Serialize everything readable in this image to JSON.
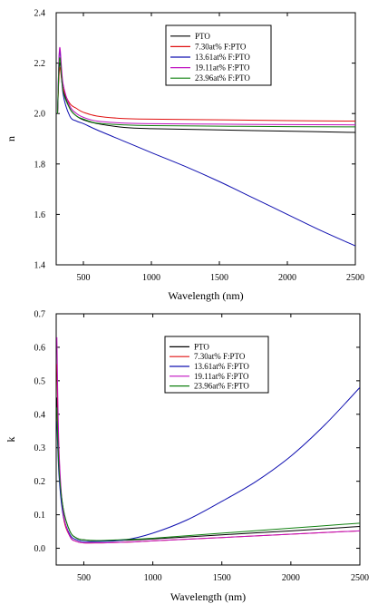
{
  "chart_data": [
    {
      "type": "line",
      "xlabel": "Wavelength (nm)",
      "ylabel": "n",
      "xlim": [
        300,
        2500
      ],
      "ylim": [
        1.4,
        2.4
      ],
      "xticks": [
        "500",
        "1000",
        "1500",
        "2000",
        "2500"
      ],
      "yticks": [
        "1.4",
        "1.6",
        "1.8",
        "2.0",
        "2.2",
        "2.4"
      ],
      "legend_position": "top-right",
      "series": [
        {
          "name": "PTO",
          "color": "#000000",
          "x": [
            310,
            325,
            350,
            400,
            450,
            500,
            600,
            800,
            1000,
            1500,
            2000,
            2500
          ],
          "y": [
            2.0,
            2.2,
            2.1,
            2.02,
            1.99,
            1.975,
            1.96,
            1.945,
            1.94,
            1.935,
            1.93,
            1.925
          ]
        },
        {
          "name": "7.30at% F:PTO",
          "color": "#e01010",
          "x": [
            310,
            325,
            350,
            400,
            450,
            500,
            600,
            800,
            1000,
            1500,
            2000,
            2500
          ],
          "y": [
            2.0,
            2.18,
            2.1,
            2.04,
            2.02,
            2.005,
            1.99,
            1.98,
            1.978,
            1.975,
            1.972,
            1.97
          ]
        },
        {
          "name": "13.61at% F:PTO",
          "color": "#1010b0",
          "x": [
            310,
            325,
            350,
            400,
            450,
            500,
            600,
            800,
            1000,
            1250,
            1500,
            1750,
            2000,
            2250,
            2500
          ],
          "y": [
            2.0,
            2.25,
            2.08,
            1.99,
            1.97,
            1.96,
            1.935,
            1.89,
            1.845,
            1.79,
            1.73,
            1.665,
            1.6,
            1.535,
            1.475
          ]
        },
        {
          "name": "19.11at% F:PTO",
          "color": "#c010c0",
          "x": [
            310,
            325,
            350,
            400,
            450,
            500,
            600,
            800,
            1000,
            1500,
            2000,
            2500
          ],
          "y": [
            2.0,
            2.26,
            2.12,
            2.03,
            2.0,
            1.985,
            1.97,
            1.962,
            1.96,
            1.958,
            1.956,
            1.955
          ]
        },
        {
          "name": "23.96at% F:PTO",
          "color": "#108010",
          "x": [
            310,
            325,
            350,
            400,
            450,
            500,
            600,
            800,
            1000,
            1500,
            2000,
            2500
          ],
          "y": [
            2.0,
            2.22,
            2.09,
            2.02,
            1.99,
            1.978,
            1.962,
            1.955,
            1.952,
            1.95,
            1.948,
            1.947
          ]
        }
      ]
    },
    {
      "type": "line",
      "xlabel": "Wavelength (nm)",
      "ylabel": "k",
      "xlim": [
        300,
        2500
      ],
      "ylim": [
        -0.05,
        0.7
      ],
      "xticks": [
        "500",
        "1000",
        "1500",
        "2000",
        "2500"
      ],
      "yticks": [
        "0.0",
        "0.1",
        "0.2",
        "0.3",
        "0.4",
        "0.5",
        "0.6",
        "0.7"
      ],
      "legend_position": "top-center",
      "series": [
        {
          "name": "PTO",
          "color": "#000000",
          "x": [
            305,
            320,
            350,
            400,
            450,
            500,
            600,
            800,
            1000,
            1500,
            2000,
            2500
          ],
          "y": [
            0.45,
            0.25,
            0.12,
            0.05,
            0.03,
            0.025,
            0.022,
            0.024,
            0.028,
            0.04,
            0.052,
            0.065
          ]
        },
        {
          "name": "7.30at% F:PTO",
          "color": "#e01010",
          "x": [
            305,
            320,
            350,
            400,
            450,
            500,
            600,
            800,
            1000,
            1500,
            2000,
            2500
          ],
          "y": [
            0.55,
            0.28,
            0.1,
            0.035,
            0.02,
            0.016,
            0.016,
            0.018,
            0.022,
            0.032,
            0.042,
            0.052
          ]
        },
        {
          "name": "13.61at% F:PTO",
          "color": "#1010b0",
          "x": [
            305,
            320,
            350,
            400,
            450,
            500,
            600,
            800,
            1000,
            1250,
            1500,
            1750,
            2000,
            2250,
            2500
          ],
          "y": [
            0.38,
            0.22,
            0.1,
            0.04,
            0.025,
            0.02,
            0.02,
            0.025,
            0.045,
            0.085,
            0.14,
            0.2,
            0.275,
            0.37,
            0.48
          ]
        },
        {
          "name": "19.11at% F:PTO",
          "color": "#c010c0",
          "x": [
            305,
            320,
            350,
            400,
            450,
            500,
            600,
            800,
            1000,
            1500,
            2000,
            2500
          ],
          "y": [
            0.63,
            0.3,
            0.11,
            0.035,
            0.02,
            0.016,
            0.016,
            0.018,
            0.022,
            0.032,
            0.042,
            0.052
          ]
        },
        {
          "name": "23.96at% F:PTO",
          "color": "#108010",
          "x": [
            305,
            320,
            350,
            400,
            450,
            500,
            600,
            800,
            1000,
            1500,
            2000,
            2500
          ],
          "y": [
            0.42,
            0.24,
            0.12,
            0.05,
            0.03,
            0.025,
            0.023,
            0.026,
            0.03,
            0.045,
            0.06,
            0.075
          ]
        }
      ]
    }
  ]
}
